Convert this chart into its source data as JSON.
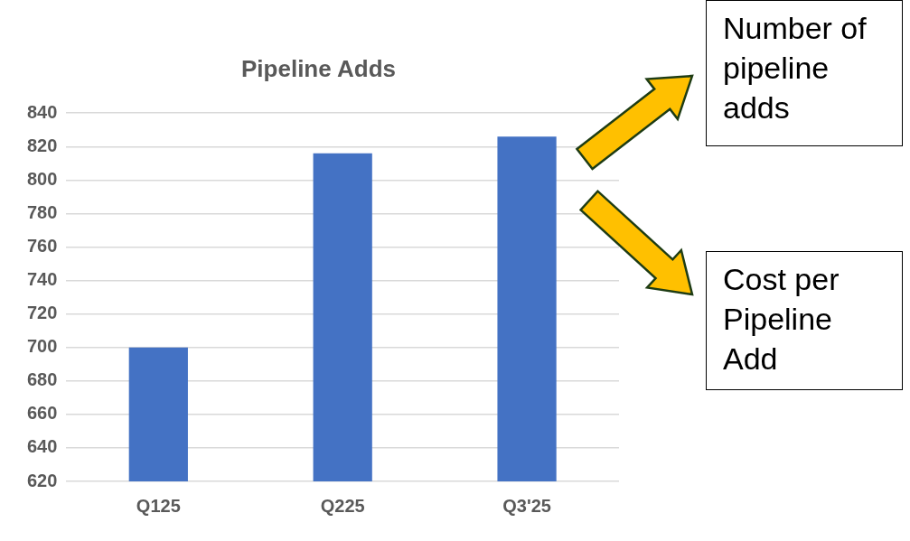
{
  "chart_data": {
    "type": "bar",
    "title": "Pipeline Adds",
    "categories": [
      "Q125",
      "Q225",
      "Q3'25"
    ],
    "values": [
      700,
      816,
      826
    ],
    "color": "#4472c4",
    "ylim": [
      620,
      840
    ],
    "yticks": [
      620,
      640,
      660,
      680,
      700,
      720,
      740,
      760,
      780,
      800,
      820,
      840
    ],
    "grid": "y",
    "legend": false,
    "annotations": [
      "Number of pipeline adds",
      "Cost per Pipeline Add"
    ]
  }
}
